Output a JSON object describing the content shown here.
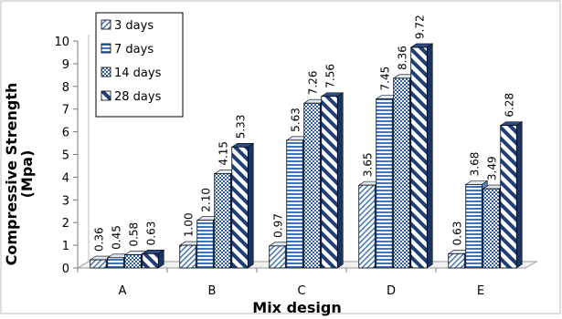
{
  "chart_data": {
    "type": "bar",
    "style": "3d-clustered-column",
    "title": "",
    "xlabel": "Mix design",
    "ylabel": "Compressive Strength (Mpa)",
    "ylabel_lines": [
      "Compressive  Strength",
      "(Mpa)"
    ],
    "ylim": [
      0,
      10
    ],
    "yticks": [
      "0",
      "1",
      "2",
      "3",
      "4",
      "5",
      "6",
      "7",
      "8",
      "9",
      "10"
    ],
    "grid": false,
    "legend_position": "top-left",
    "categories": [
      "A",
      "B",
      "C",
      "D",
      "E"
    ],
    "series": [
      {
        "name": "3 days",
        "values": [
          0.36,
          1.0,
          0.97,
          3.65,
          0.63
        ],
        "labels": [
          "0.36",
          "1.00",
          "0.97",
          "3.65",
          "0.63"
        ]
      },
      {
        "name": "7 days",
        "values": [
          0.45,
          2.1,
          5.63,
          7.45,
          3.68
        ],
        "labels": [
          "0.45",
          "2.10",
          "5.63",
          "7.45",
          "3.68"
        ]
      },
      {
        "name": "14 days",
        "values": [
          0.58,
          4.15,
          7.26,
          8.36,
          3.49
        ],
        "labels": [
          "0.58",
          "4.15",
          "7.26",
          "8.36",
          "3.49"
        ]
      },
      {
        "name": "28 days",
        "values": [
          0.63,
          5.33,
          7.56,
          9.72,
          6.28
        ],
        "labels": [
          "0.63",
          "5.33",
          "7.56",
          "9.72",
          "6.28"
        ]
      }
    ]
  }
}
